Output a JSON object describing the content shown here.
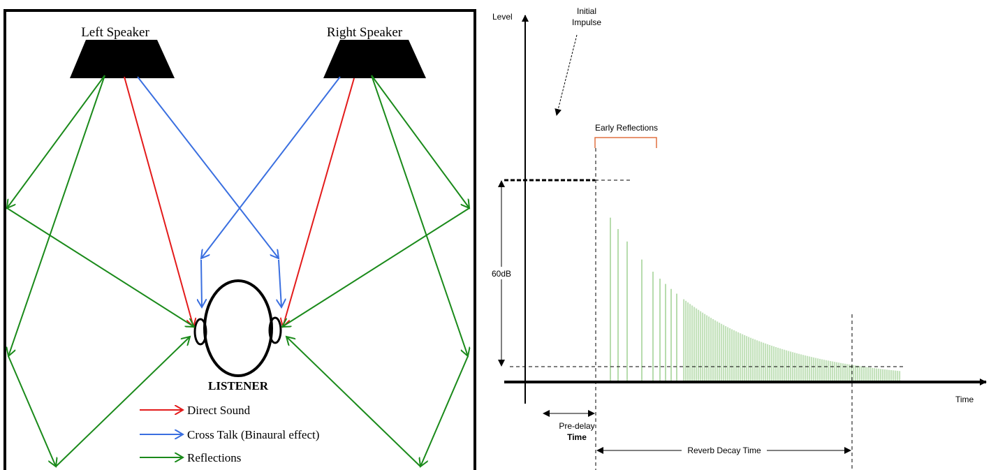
{
  "room": {
    "speakers": [
      "Left Speaker",
      "Right Speaker"
    ],
    "listener": "LISTENER",
    "legend": [
      "Direct Sound",
      "Cross Talk (Binaural effect)",
      "Reflections"
    ]
  },
  "reverb": {
    "y_label": "Level",
    "x_label": "Time",
    "initial_impulse": [
      "Initial",
      "Impulse"
    ],
    "early_reflections": "Early Reflections",
    "level_range": "60dB",
    "pre_delay": [
      "Pre-delay",
      "Time"
    ],
    "reverb_decay": "Reverb Decay Time"
  }
}
